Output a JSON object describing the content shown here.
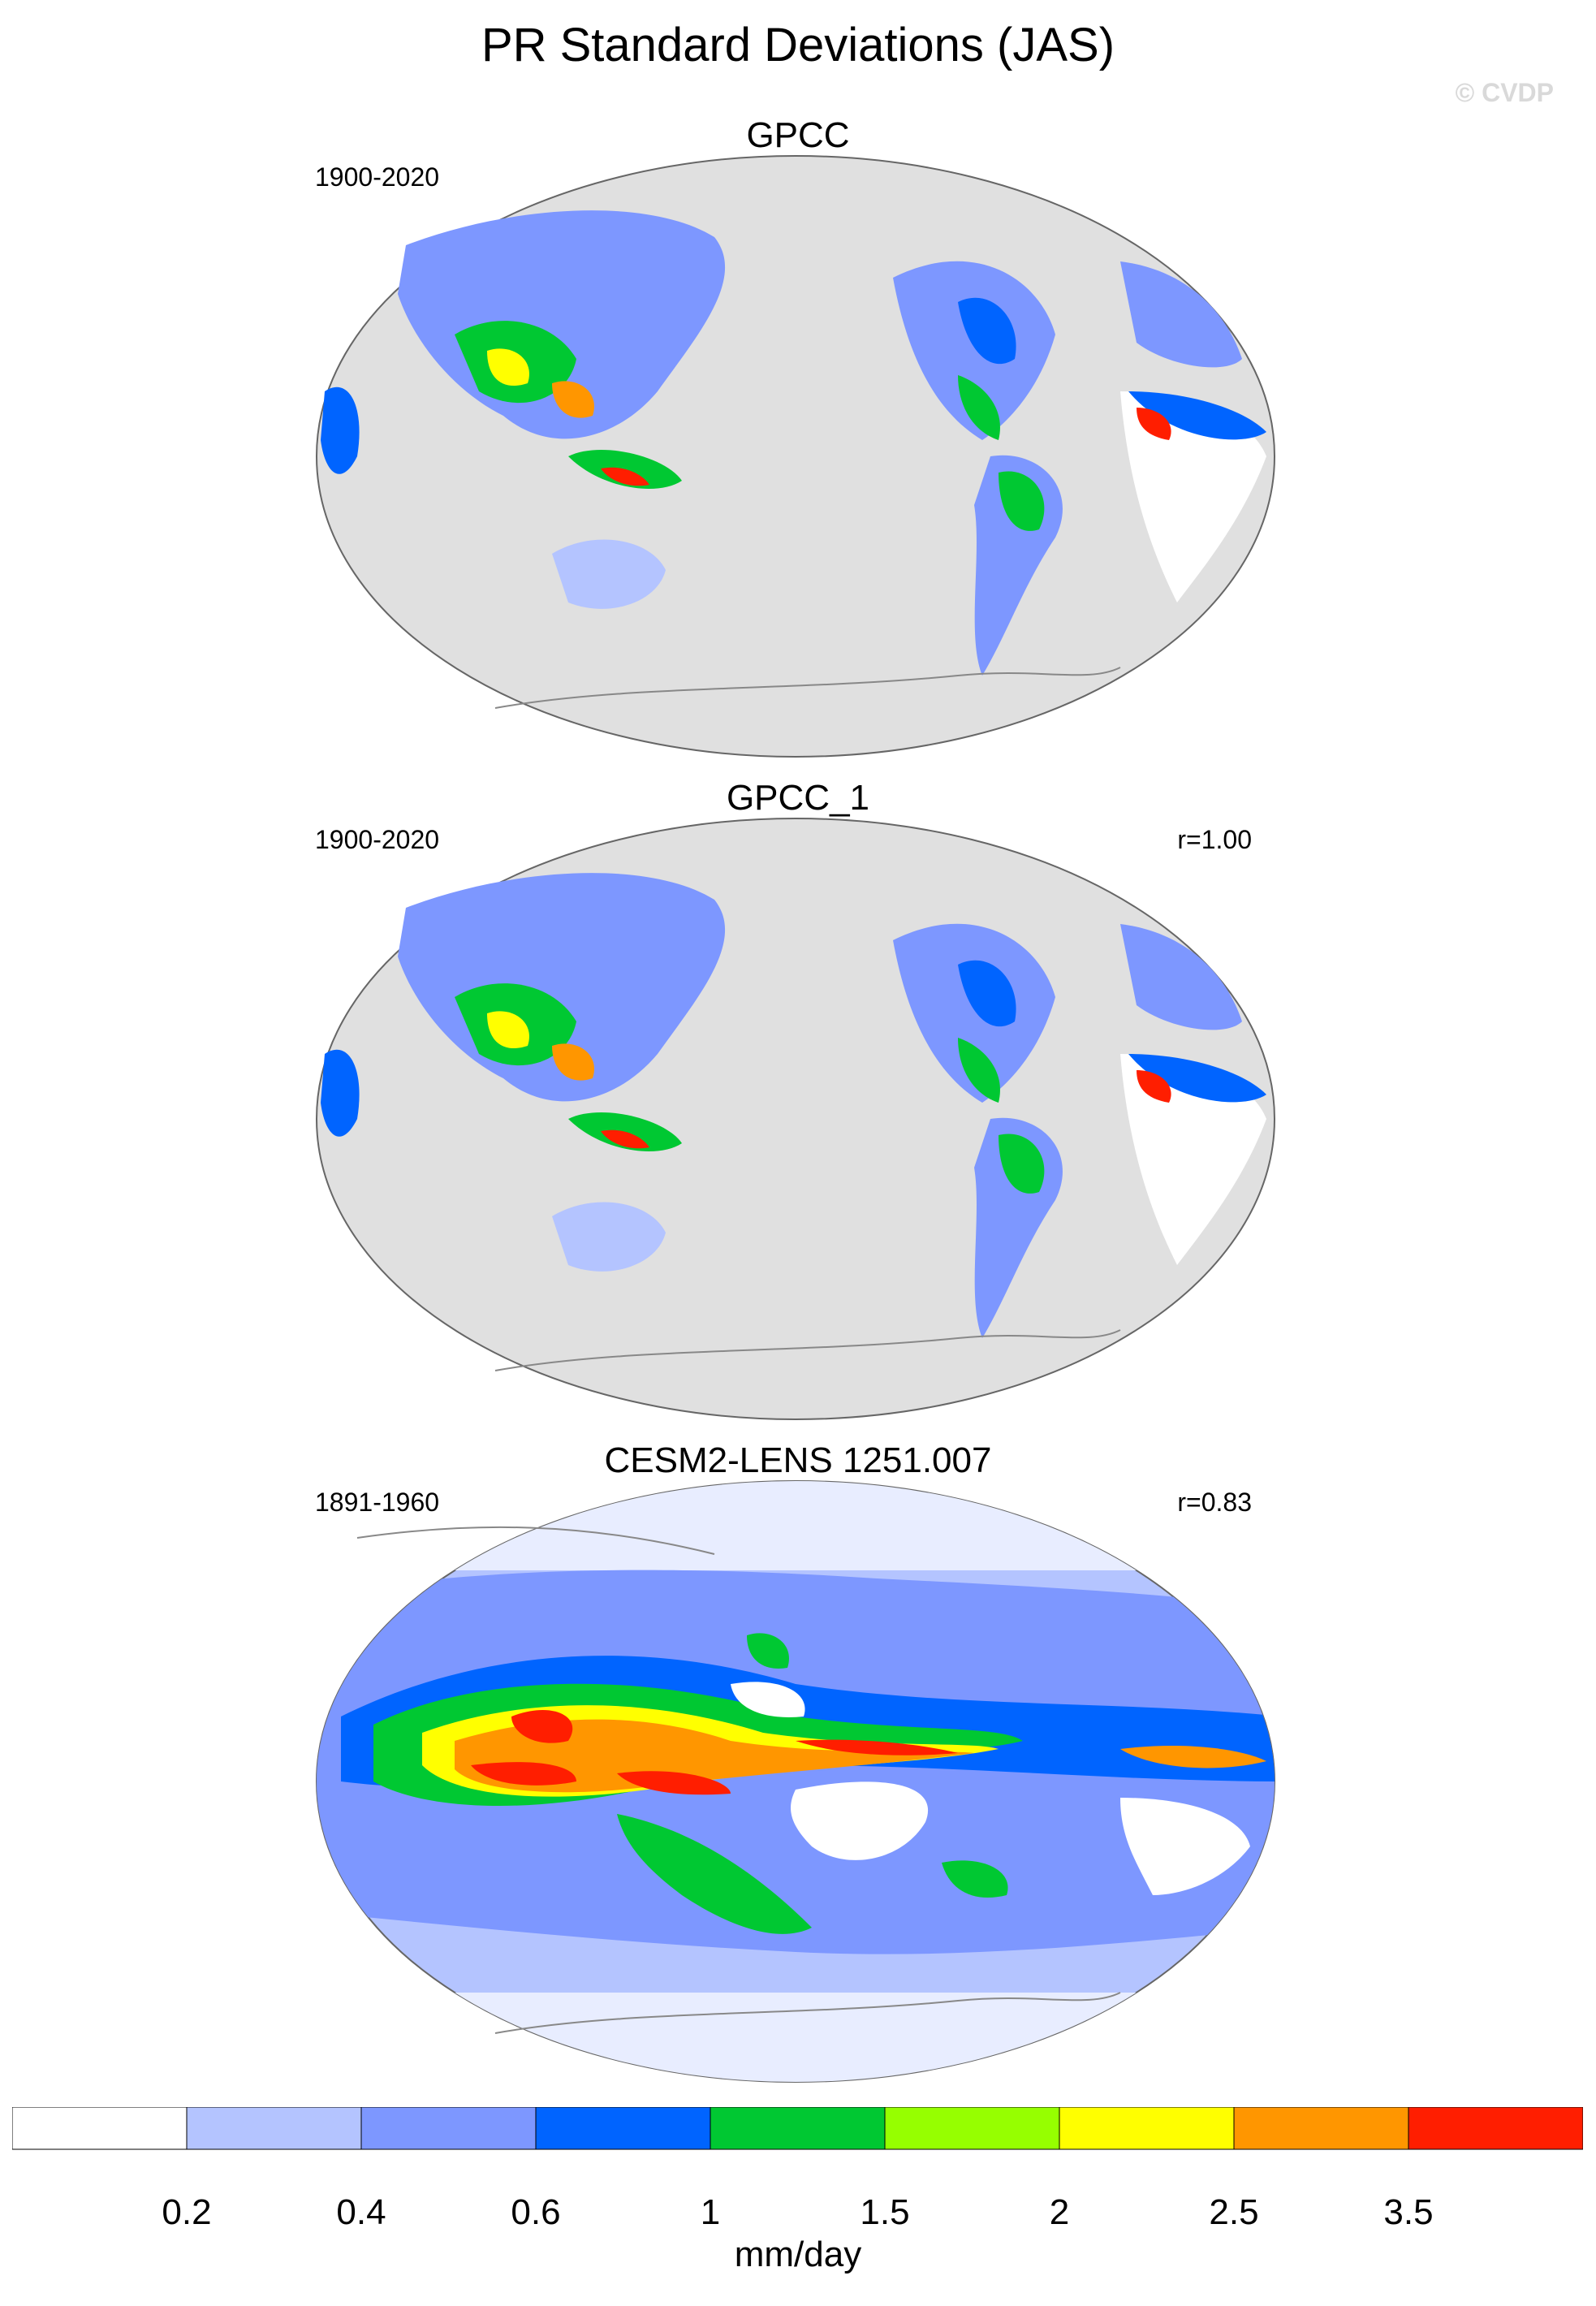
{
  "title": "PR Standard Deviations (JAS)",
  "copyright": "© CVDP",
  "panels": [
    {
      "title": "GPCC",
      "period": "1900-2020",
      "correlation": ""
    },
    {
      "title": "GPCC_1",
      "period": "1900-2020",
      "correlation": "r=1.00"
    },
    {
      "title": "CESM2-LENS 1251.007",
      "period": "1891-1960",
      "correlation": "r=0.83"
    }
  ],
  "colorbar": {
    "levels": [
      "0.2",
      "0.4",
      "0.6",
      "1",
      "1.5",
      "2",
      "2.5",
      "3.5"
    ],
    "colors": [
      "#ffffff",
      "#b4c4ff",
      "#7d97ff",
      "#0064ff",
      "#00c832",
      "#96ff00",
      "#ffff00",
      "#ff9600",
      "#ff1e00"
    ],
    "units": "mm/day"
  },
  "map_colors": {
    "ocean_masked": "#e0e0e0",
    "coast": "#888888"
  }
}
